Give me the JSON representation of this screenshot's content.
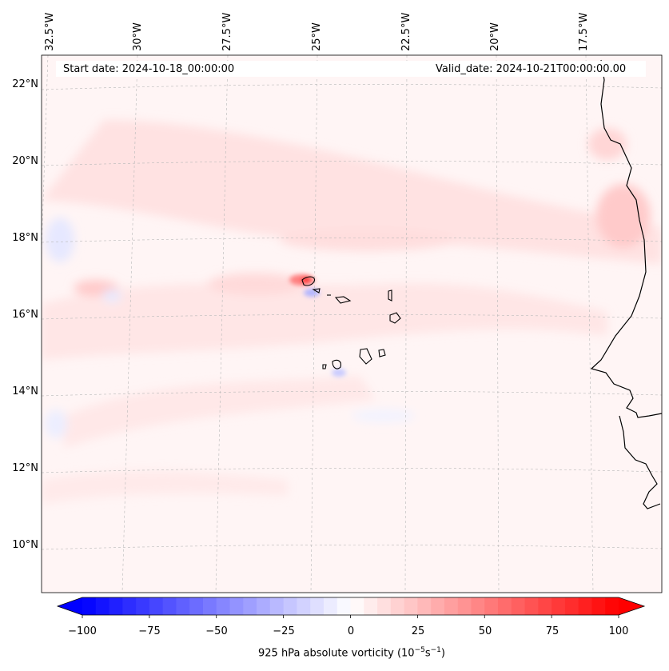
{
  "header": {
    "start_date": "Start date: 2024-10-18_00:00:00",
    "valid_date": "Valid_date: 2024-10-21T00:00:00.00"
  },
  "axes": {
    "lon_labels": [
      "32.5°W",
      "30°W",
      "27.5°W",
      "25°W",
      "22.5°W",
      "20°W",
      "17.5°W"
    ],
    "lat_labels": [
      "22°N",
      "20°N",
      "18°N",
      "16°N",
      "14°N",
      "12°N",
      "10°N"
    ],
    "gridlines": "dashed"
  },
  "map": {
    "field": "925 hPa absolute vorticity",
    "colormap": "bwr",
    "value_range": [
      -100,
      100
    ],
    "dominant_values": "weakly positive (0 to 15) over most of the domain, maximum ~70 just north-west of the Cape Verde islands, weak negative patches near 32.5°W",
    "land_outlines": [
      "West African coast",
      "Cape Verde islands"
    ]
  },
  "colorbar": {
    "tick_labels": [
      "−100",
      "−75",
      "−50",
      "−25",
      "0",
      "25",
      "50",
      "75",
      "100"
    ],
    "title": "925 hPa absolute vorticity (10",
    "title_exp1": "−5",
    "title_mid": "s",
    "title_exp2": "−1",
    "title_end": ")",
    "low_color": "#0000ff",
    "mid_color": "#ffffff",
    "high_color": "#ff0000",
    "extend": "both"
  }
}
